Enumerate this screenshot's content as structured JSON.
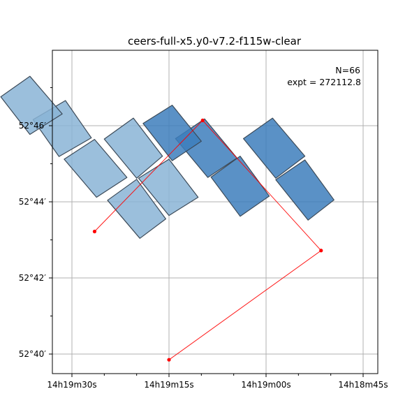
{
  "chart_data": {
    "type": "scatter",
    "title": "ceers-full-x5.y0-v7.2-f115w-clear",
    "xlabel": "",
    "ylabel": "",
    "grid": true,
    "x_axis_unit": "seconds of RA within 14h18m–14h19m (RA increases to the left)",
    "y_axis_unit": "arcminutes of Dec above 52°",
    "xlim": [
      31.9,
      43.4
    ],
    "ylim": [
      39.5,
      47.7
    ],
    "x_ticks": [
      {
        "value": 90,
        "label": "14h19m30s"
      },
      {
        "value": 75,
        "label": "14h19m15s"
      },
      {
        "value": 60,
        "label": "14h19m00s"
      },
      {
        "value": 45,
        "label": "14h18m45s"
      }
    ],
    "y_ticks": [
      {
        "value": 40,
        "label": "52°40′"
      },
      {
        "value": 42,
        "label": "52°42′"
      },
      {
        "value": 44,
        "label": "52°44′"
      },
      {
        "value": 46,
        "label": "52°46′"
      }
    ],
    "annotations": {
      "n_label": "N=66",
      "expt_label": "expt = 272112.8"
    },
    "footprints_light": [
      [
        [
          96.0,
          46.16
        ],
        [
          91.0,
          46.66
        ],
        [
          87.0,
          45.68
        ],
        [
          92.0,
          45.19
        ]
      ],
      [
        [
          101.0,
          46.76
        ],
        [
          96.5,
          47.3
        ],
        [
          91.5,
          46.31
        ],
        [
          96.5,
          45.77
        ]
      ],
      [
        [
          91.2,
          45.12
        ],
        [
          86.5,
          45.64
        ],
        [
          81.5,
          44.64
        ],
        [
          86.2,
          44.12
        ]
      ],
      [
        [
          85.0,
          45.65
        ],
        [
          80.5,
          46.2
        ],
        [
          76.0,
          45.2
        ],
        [
          80.0,
          44.62
        ]
      ],
      [
        [
          84.5,
          44.04
        ],
        [
          80.0,
          44.59
        ],
        [
          75.5,
          43.55
        ],
        [
          79.5,
          43.04
        ]
      ],
      [
        [
          79.7,
          44.62
        ],
        [
          75.0,
          45.12
        ],
        [
          70.5,
          44.12
        ],
        [
          75.0,
          43.64
        ]
      ]
    ],
    "footprints_dark": [
      [
        [
          74.0,
          45.66
        ],
        [
          69.5,
          46.18
        ],
        [
          64.5,
          45.15
        ],
        [
          69.0,
          44.64
        ]
      ],
      [
        [
          68.5,
          44.65
        ],
        [
          64.0,
          45.2
        ],
        [
          59.5,
          44.15
        ],
        [
          64.0,
          43.62
        ]
      ],
      [
        [
          63.5,
          45.66
        ],
        [
          59.0,
          46.2
        ],
        [
          54.0,
          45.2
        ],
        [
          58.5,
          44.62
        ]
      ],
      [
        [
          58.5,
          44.58
        ],
        [
          54.0,
          45.1
        ],
        [
          49.5,
          44.05
        ],
        [
          53.5,
          43.52
        ]
      ],
      [
        [
          79.0,
          46.06
        ],
        [
          74.5,
          46.54
        ],
        [
          70.0,
          45.59
        ],
        [
          74.5,
          45.08
        ]
      ]
    ],
    "track": {
      "x": [
        86.5,
        69.8,
        51.5,
        75.0
      ],
      "y": [
        43.22,
        46.14,
        42.72,
        39.85
      ]
    },
    "colors": {
      "light_fill": "#8ab4d6",
      "dark_fill": "#3d7ebc",
      "track": "#ff0000",
      "grid": "#b0b0b0"
    }
  }
}
